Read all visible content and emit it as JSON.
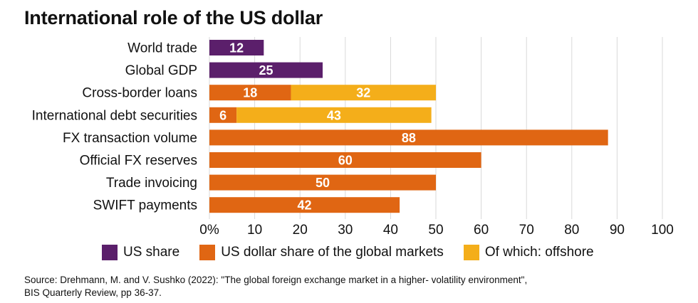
{
  "title": "International role of the US dollar",
  "chart_data": {
    "type": "bar",
    "orientation": "horizontal",
    "stacked": true,
    "categories": [
      "World trade",
      "Global GDP",
      "Cross-border loans",
      "International debt securities",
      "FX transaction volume",
      "Official FX reserves",
      "Trade invoicing",
      "SWIFT payments"
    ],
    "series": [
      {
        "name": "US share",
        "color": "#5b1f6b",
        "values": [
          12,
          25,
          null,
          null,
          null,
          null,
          null,
          null
        ]
      },
      {
        "name": "US dollar share of the global markets",
        "color": "#e06613",
        "values": [
          null,
          null,
          18,
          6,
          88,
          60,
          50,
          42
        ]
      },
      {
        "name": "Of which: offshore",
        "color": "#f4ae1a",
        "values": [
          null,
          null,
          32,
          43,
          null,
          null,
          null,
          null
        ]
      }
    ],
    "xlim": [
      0,
      100
    ],
    "x_ticks": [
      "0%",
      "10",
      "20",
      "30",
      "40",
      "50",
      "60",
      "70",
      "80",
      "90",
      "100"
    ],
    "grid": "vertical",
    "legend": "bottom"
  },
  "source": {
    "line1": "Source: Drehmann, M. and V. Sushko (2022): \"The global foreign exchange market in a higher- volatility environment\",",
    "line2": "BIS Quarterly Review, pp 36-37."
  }
}
